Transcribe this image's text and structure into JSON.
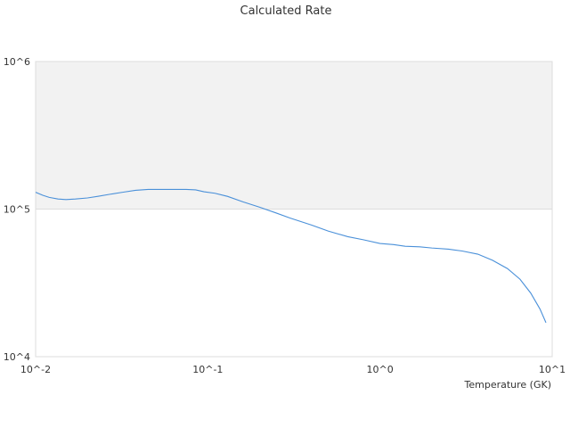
{
  "chart_data": {
    "type": "line",
    "title": "Calculated Rate",
    "xlabel": "Temperature (GK)",
    "ylabel": "",
    "x_scale": "log",
    "y_scale": "log",
    "xlim": [
      0.01,
      10
    ],
    "ylim": [
      10000,
      1000000
    ],
    "x_ticks": [
      {
        "value": 0.01,
        "label": "10^-2"
      },
      {
        "value": 0.1,
        "label": "10^-1"
      },
      {
        "value": 1,
        "label": "10^0"
      },
      {
        "value": 10,
        "label": "10^1"
      }
    ],
    "y_ticks": [
      {
        "value": 10000,
        "label": "10^4"
      },
      {
        "value": 100000,
        "label": "10^5"
      },
      {
        "value": 1000000,
        "label": "10^6"
      }
    ],
    "shaded_band": {
      "y_from": 100000,
      "y_to": 1000000,
      "color": "#f2f2f2"
    },
    "grid": true,
    "legend": "none",
    "series": [
      {
        "color": "#4a90d9",
        "x": [
          0.01,
          0.011,
          0.012,
          0.0135,
          0.015,
          0.017,
          0.02,
          0.023,
          0.027,
          0.032,
          0.038,
          0.045,
          0.055,
          0.065,
          0.075,
          0.085,
          0.095,
          0.11,
          0.13,
          0.16,
          0.2,
          0.25,
          0.3,
          0.4,
          0.5,
          0.65,
          0.8,
          1.0,
          1.2,
          1.4,
          1.7,
          2.0,
          2.5,
          3.0,
          3.7,
          4.5,
          5.5,
          6.5,
          7.5,
          8.5,
          9.2
        ],
        "y": [
          130000,
          124000,
          120000,
          117000,
          116000,
          117000,
          119000,
          122000,
          126000,
          130000,
          134000,
          136000,
          136000,
          136000,
          136000,
          135000,
          131000,
          128000,
          122000,
          112000,
          103000,
          94000,
          87000,
          78000,
          71000,
          65000,
          62000,
          58500,
          57500,
          56000,
          55500,
          54500,
          53500,
          52000,
          49500,
          45000,
          39500,
          33500,
          27000,
          21000,
          17000
        ]
      }
    ]
  }
}
